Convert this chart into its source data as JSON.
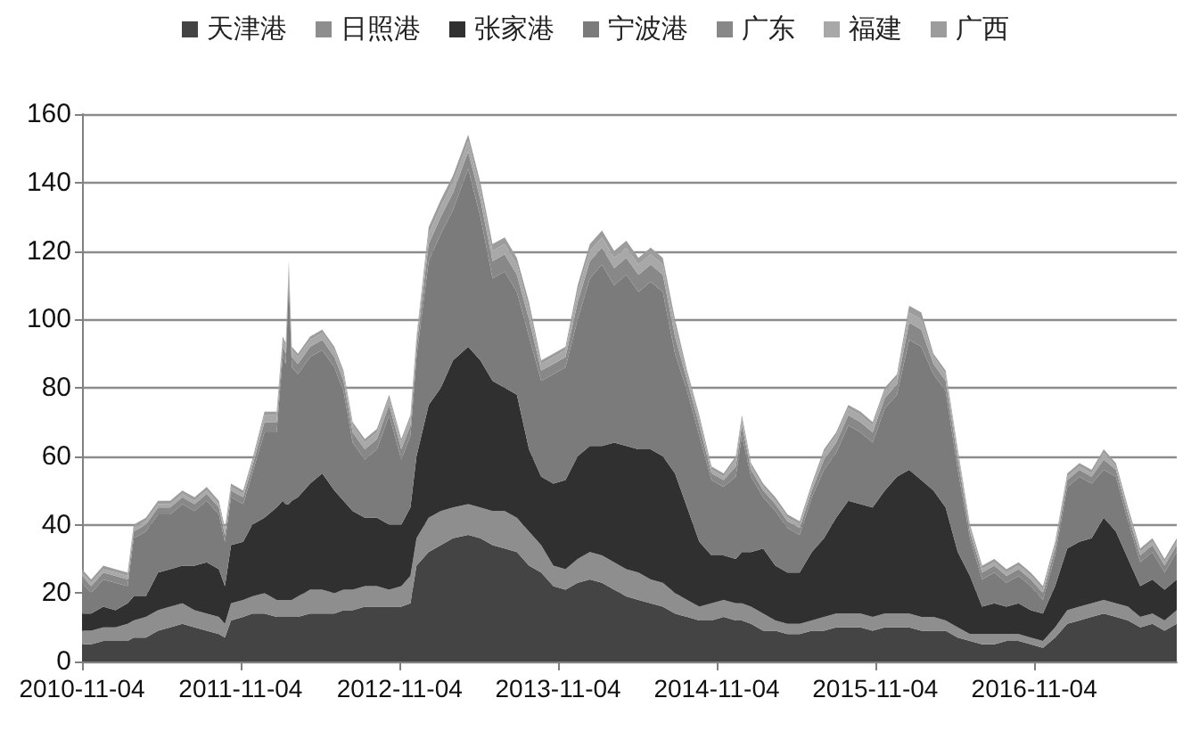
{
  "chart_data": {
    "type": "area",
    "stacked": true,
    "legend": "top",
    "grid": "y",
    "xlim": [
      "2010-11-04",
      "2017-09-28"
    ],
    "xticks": [
      "2010-11-04",
      "2011-11-04",
      "2012-11-04",
      "2013-11-04",
      "2014-11-04",
      "2015-11-04",
      "2016-11-04"
    ],
    "ylim": [
      0,
      160
    ],
    "yticks": [
      0,
      20,
      40,
      60,
      80,
      100,
      120,
      140,
      160
    ],
    "x": [
      "2010-11-04",
      "2010-11-25",
      "2010-12-23",
      "2011-01-20",
      "2011-02-17",
      "2011-03-03",
      "2011-03-31",
      "2011-04-28",
      "2011-05-26",
      "2011-06-23",
      "2011-07-21",
      "2011-08-18",
      "2011-09-15",
      "2011-09-29",
      "2011-10-13",
      "2011-11-10",
      "2011-12-01",
      "2011-12-29",
      "2012-01-26",
      "2012-02-09",
      "2012-02-16",
      "2012-02-23",
      "2012-03-01",
      "2012-03-15",
      "2012-04-12",
      "2012-05-10",
      "2012-06-07",
      "2012-06-28",
      "2012-07-19",
      "2012-08-16",
      "2012-09-13",
      "2012-10-11",
      "2012-11-08",
      "2012-11-29",
      "2012-12-13",
      "2013-01-10",
      "2013-02-07",
      "2013-03-07",
      "2013-04-11",
      "2013-05-09",
      "2013-06-06",
      "2013-07-04",
      "2013-08-01",
      "2013-08-29",
      "2013-09-26",
      "2013-10-24",
      "2013-11-21",
      "2013-12-19",
      "2014-01-16",
      "2014-02-13",
      "2014-03-13",
      "2014-04-10",
      "2014-05-08",
      "2014-06-05",
      "2014-07-03",
      "2014-07-31",
      "2014-08-28",
      "2014-09-25",
      "2014-10-23",
      "2014-11-20",
      "2014-12-18",
      "2015-01-01",
      "2015-01-22",
      "2015-02-19",
      "2015-03-19",
      "2015-04-16",
      "2015-05-14",
      "2015-06-11",
      "2015-07-09",
      "2015-08-06",
      "2015-09-03",
      "2015-10-01",
      "2015-10-29",
      "2015-11-26",
      "2015-12-24",
      "2016-01-21",
      "2016-02-18",
      "2016-03-17",
      "2016-04-14",
      "2016-05-12",
      "2016-06-09",
      "2016-07-07",
      "2016-08-04",
      "2016-09-01",
      "2016-09-29",
      "2016-10-27",
      "2016-11-24",
      "2016-12-22",
      "2017-01-19",
      "2017-02-16",
      "2017-03-16",
      "2017-04-13",
      "2017-05-11",
      "2017-06-08",
      "2017-07-06",
      "2017-08-03",
      "2017-08-31",
      "2017-09-28"
    ],
    "series": [
      {
        "name": "天津港",
        "color": "#444444",
        "values": [
          5,
          5,
          6,
          6,
          6,
          7,
          7,
          9,
          10,
          11,
          10,
          9,
          8,
          7,
          12,
          13,
          14,
          14,
          13,
          13,
          13,
          13,
          13,
          13,
          14,
          14,
          14,
          15,
          15,
          16,
          16,
          16,
          16,
          17,
          28,
          32,
          34,
          36,
          37,
          36,
          34,
          33,
          32,
          28,
          26,
          22,
          21,
          23,
          24,
          23,
          21,
          19,
          18,
          17,
          16,
          14,
          13,
          12,
          12,
          13,
          12,
          12,
          11,
          9,
          9,
          8,
          8,
          9,
          9,
          10,
          10,
          10,
          9,
          10,
          10,
          10,
          9,
          9,
          9,
          7,
          6,
          5,
          5,
          6,
          6,
          5,
          4,
          7,
          11,
          12,
          13,
          14,
          13,
          12,
          10,
          11,
          9,
          11
        ]
      },
      {
        "name": "日照港",
        "color": "#8e8e8e",
        "values": [
          4,
          4,
          4,
          4,
          5,
          5,
          6,
          6,
          6,
          6,
          5,
          5,
          5,
          4,
          5,
          5,
          5,
          6,
          5,
          5,
          5,
          5,
          5,
          6,
          7,
          7,
          6,
          6,
          6,
          6,
          6,
          5,
          6,
          8,
          8,
          10,
          10,
          9,
          9,
          9,
          10,
          11,
          10,
          10,
          8,
          6,
          6,
          7,
          8,
          8,
          8,
          8,
          8,
          7,
          7,
          6,
          5,
          4,
          5,
          5,
          5,
          5,
          5,
          5,
          3,
          3,
          3,
          3,
          4,
          4,
          4,
          4,
          4,
          4,
          4,
          4,
          4,
          4,
          3,
          3,
          2,
          3,
          3,
          2,
          2,
          2,
          2,
          3,
          4,
          4,
          4,
          4,
          4,
          4,
          3,
          3,
          3,
          4
        ]
      },
      {
        "name": "张家港",
        "color": "#303030",
        "values": [
          5,
          5,
          6,
          5,
          6,
          7,
          6,
          11,
          11,
          11,
          13,
          15,
          14,
          11,
          17,
          17,
          21,
          22,
          27,
          29,
          28,
          28,
          29,
          29,
          31,
          34,
          30,
          26,
          23,
          20,
          20,
          19,
          18,
          20,
          24,
          33,
          36,
          43,
          46,
          43,
          38,
          36,
          36,
          24,
          20,
          24,
          26,
          30,
          31,
          32,
          35,
          36,
          36,
          38,
          37,
          35,
          27,
          19,
          14,
          13,
          13,
          15,
          16,
          19,
          16,
          15,
          15,
          20,
          23,
          28,
          33,
          32,
          32,
          36,
          40,
          42,
          40,
          37,
          33,
          22,
          17,
          8,
          9,
          8,
          9,
          8,
          8,
          12,
          18,
          19,
          19,
          24,
          21,
          14,
          9,
          10,
          9,
          9
        ]
      },
      {
        "name": "宁波港",
        "color": "#7b7b7b",
        "values": [
          9,
          6,
          8,
          8,
          5,
          17,
          19,
          17,
          16,
          18,
          16,
          18,
          16,
          13,
          14,
          11,
          15,
          25,
          22,
          42,
          41,
          65,
          39,
          36,
          37,
          36,
          36,
          32,
          20,
          17,
          20,
          32,
          19,
          21,
          29,
          42,
          45,
          44,
          52,
          42,
          30,
          34,
          30,
          33,
          28,
          32,
          33,
          40,
          49,
          53,
          46,
          50,
          46,
          49,
          48,
          35,
          34,
          31,
          22,
          20,
          24,
          34,
          22,
          15,
          16,
          13,
          11,
          16,
          20,
          19,
          22,
          21,
          19,
          24,
          24,
          38,
          39,
          34,
          34,
          24,
          11,
          8,
          9,
          7,
          8,
          7,
          4,
          9,
          18,
          19,
          16,
          14,
          16,
          11,
          7,
          8,
          5,
          8
        ]
      },
      {
        "name": "广东",
        "color": "#888888",
        "values": [
          2,
          2,
          2,
          2,
          2,
          2,
          2,
          2,
          2,
          2,
          2,
          2,
          2,
          2,
          2,
          2,
          2,
          3,
          3,
          3,
          3,
          3,
          3,
          3,
          3,
          3,
          3,
          3,
          3,
          3,
          3,
          3,
          3,
          3,
          3,
          5,
          5,
          5,
          5,
          5,
          5,
          5,
          5,
          5,
          3,
          3,
          3,
          5,
          5,
          5,
          5,
          5,
          5,
          5,
          5,
          5,
          3,
          3,
          2,
          2,
          3,
          3,
          2,
          2,
          2,
          2,
          2,
          2,
          3,
          3,
          3,
          3,
          3,
          3,
          3,
          5,
          5,
          3,
          3,
          3,
          2,
          2,
          2,
          2,
          2,
          2,
          2,
          2,
          2,
          2,
          2,
          3,
          2,
          2,
          2,
          2,
          2,
          2
        ]
      },
      {
        "name": "福建",
        "color": "#a8a8a8",
        "values": [
          1,
          1,
          1,
          1,
          1,
          1,
          1,
          1,
          1,
          1,
          1,
          1,
          1,
          1,
          1,
          1,
          1,
          2,
          2,
          2,
          2,
          2,
          2,
          2,
          2,
          2,
          2,
          2,
          2,
          2,
          2,
          2,
          2,
          2,
          2,
          3,
          3,
          3,
          3,
          3,
          3,
          3,
          3,
          3,
          2,
          2,
          2,
          3,
          3,
          3,
          3,
          3,
          3,
          3,
          3,
          3,
          2,
          2,
          1,
          1,
          2,
          2,
          1,
          1,
          1,
          1,
          1,
          1,
          2,
          2,
          2,
          2,
          2,
          2,
          2,
          3,
          3,
          2,
          2,
          2,
          1,
          1,
          1,
          1,
          1,
          1,
          1,
          1,
          1,
          1,
          1,
          2,
          1,
          1,
          1,
          1,
          1,
          1
        ]
      },
      {
        "name": "广西",
        "color": "#9c9c9c",
        "values": [
          1,
          1,
          1,
          1,
          1,
          1,
          1,
          1,
          1,
          1,
          1,
          1,
          1,
          1,
          1,
          1,
          1,
          1,
          1,
          1,
          1,
          1,
          1,
          1,
          1,
          1,
          1,
          1,
          1,
          1,
          1,
          1,
          1,
          1,
          1,
          2,
          2,
          2,
          2,
          2,
          2,
          2,
          2,
          2,
          1,
          1,
          1,
          2,
          2,
          2,
          2,
          2,
          2,
          2,
          2,
          2,
          1,
          1,
          1,
          1,
          1,
          1,
          1,
          1,
          1,
          1,
          1,
          1,
          1,
          1,
          1,
          1,
          1,
          1,
          1,
          2,
          2,
          1,
          1,
          1,
          1,
          1,
          1,
          1,
          1,
          1,
          1,
          1,
          1,
          1,
          1,
          1,
          1,
          1,
          1,
          1,
          1,
          1
        ]
      }
    ]
  }
}
